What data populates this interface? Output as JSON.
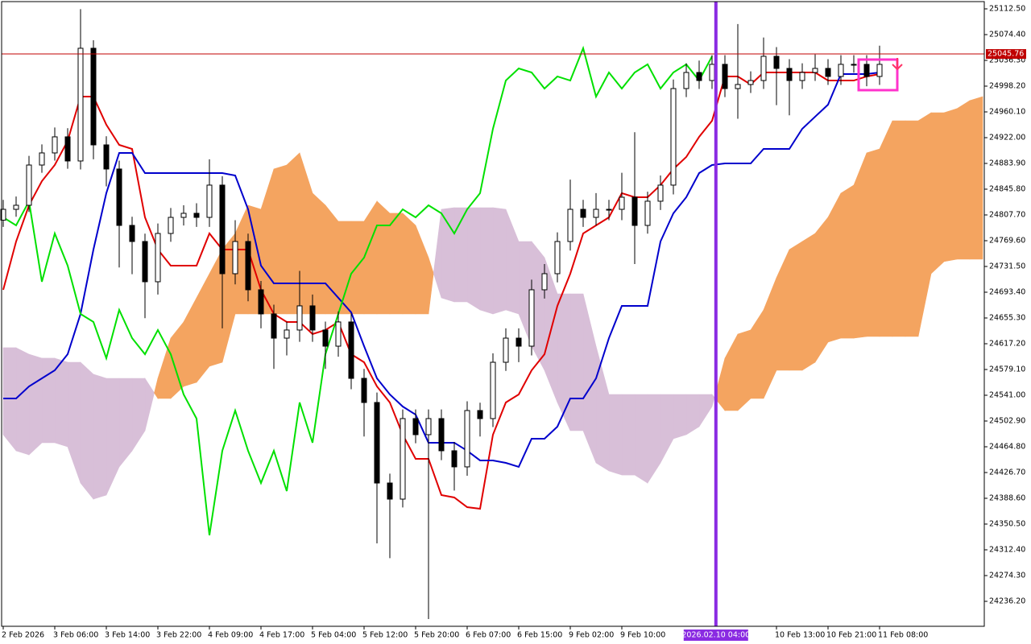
{
  "chart_data": {
    "type": "candlestick",
    "x": [
      0,
      2,
      4,
      6,
      8,
      10,
      12,
      14,
      16,
      18,
      20,
      22,
      24,
      26,
      28,
      30,
      32,
      34,
      36,
      38,
      40,
      42,
      44,
      46,
      48,
      50,
      52,
      54,
      56,
      58,
      60,
      62,
      64,
      66,
      68,
      70,
      72,
      74,
      76,
      78,
      80,
      82,
      84,
      86,
      88,
      90,
      92,
      94,
      96,
      98,
      100,
      102,
      104,
      106,
      108,
      110,
      112,
      114,
      116,
      118,
      120,
      122,
      124,
      126,
      128,
      130,
      132,
      134,
      136,
      138,
      140,
      142,
      144,
      146,
      148,
      150,
      152
    ],
    "open": [
      24800.0,
      24816.0,
      24822.0,
      24881.5,
      24899.4,
      24923.2,
      24887.5,
      25054.2,
      24911.3,
      24875.6,
      24792.2,
      24768.4,
      24708.9,
      24780.3,
      24804.1,
      24810.1,
      24804.1,
      24851.8,
      24720.8,
      24768.4,
      24697.0,
      24661.3,
      24625.5,
      24637.5,
      24673.2,
      24637.5,
      24613.6,
      24649.4,
      24566.0,
      24530.3,
      24411.2,
      24387.4,
      24506.5,
      24482.7,
      24506.5,
      24458.9,
      24435.1,
      24518.4,
      24506.5,
      24589.8,
      24625.5,
      24613.6,
      24697.0,
      24720.8,
      24768.4,
      24816.0,
      24804.1,
      24816.0,
      24816.0,
      24833.9,
      24792.2,
      24828.0,
      24851.8,
      24994.6,
      25018.4,
      25006.5,
      25030.4,
      24994.6,
      25000.6,
      25006.5,
      25042.3,
      25024.4,
      25006.5,
      25018.4,
      25024.4,
      25012.5,
      25030.4,
      25030.4,
      25012.5,
      null,
      null,
      null,
      null,
      null,
      null,
      null,
      null
    ],
    "high": [
      24830,
      24835,
      24895,
      24912,
      24937,
      24936,
      25112,
      25066,
      24924,
      24888,
      24805,
      24780,
      24795,
      24818,
      24822,
      24825,
      24890,
      24865,
      24800,
      24780,
      24710,
      24675,
      24650,
      24725,
      24690,
      24650,
      24665,
      24662,
      24580,
      24545,
      24425,
      24520,
      24520,
      24520,
      24520,
      24472,
      24532,
      24530,
      24603,
      24640,
      24640,
      24712,
      24735,
      24782,
      24860,
      24830,
      24840,
      24830,
      24870,
      24930,
      24842,
      24866,
      25008,
      25032,
      25036,
      25044,
      25044,
      25090,
      25020,
      25070,
      25056,
      25038,
      25032,
      25045,
      25038,
      25044,
      25044,
      25044,
      25058,
      null,
      null,
      null,
      null,
      null,
      null,
      null,
      null
    ],
    "low": [
      24790,
      24805,
      24812,
      24870,
      24888,
      24876,
      24875,
      24890,
      24850,
      24730,
      24720,
      24655,
      24690,
      24768,
      24792,
      24790,
      24790,
      24640,
      24705,
      24680,
      24640,
      24580,
      24600,
      24620,
      24620,
      24580,
      24598,
      24550,
      24480,
      24322,
      24300,
      24375,
      24470,
      24210,
      24445,
      24400,
      24422,
      24480,
      24494,
      24577,
      24590,
      24600,
      24684,
      24708,
      24755,
      24790,
      24792,
      24800,
      24800,
      24735,
      24780,
      24815,
      24838,
      24982,
      24994,
      24994,
      24982,
      24950,
      24988,
      24994,
      24970,
      24955,
      24994,
      25006,
      25000,
      25000,
      25018,
      24998,
      25000,
      null,
      null,
      null,
      null,
      null,
      null,
      null,
      null
    ],
    "close": [
      24816.0,
      24822.0,
      24881.5,
      24899.4,
      24923.2,
      24887.5,
      25054.2,
      24911.3,
      24875.6,
      24792.2,
      24768.4,
      24708.9,
      24780.3,
      24804.1,
      24810.1,
      24804.1,
      24851.8,
      24720.8,
      24768.4,
      24697.0,
      24661.3,
      24625.5,
      24637.5,
      24673.2,
      24637.5,
      24613.6,
      24649.4,
      24566.0,
      24530.3,
      24411.2,
      24387.4,
      24506.5,
      24482.7,
      24506.5,
      24458.9,
      24435.1,
      24518.4,
      24506.5,
      24589.8,
      24625.5,
      24613.6,
      24697.0,
      24720.8,
      24768.4,
      24816.0,
      24804.1,
      24816.0,
      24816.0,
      24833.9,
      24792.2,
      24828.0,
      24851.8,
      24994.6,
      25018.4,
      25006.5,
      25030.4,
      24994.6,
      25000.6,
      25006.5,
      25042.3,
      25024.4,
      25006.5,
      25018.4,
      25024.4,
      25012.5,
      25030.4,
      25030.4,
      25012.5,
      25030.4,
      null,
      null,
      null,
      null,
      null,
      null,
      null,
      null
    ],
    "up_color": "#ffffff",
    "down_color": "#000000",
    "lines": [
      {
        "color": "#e00000",
        "values": [
          24697.0,
          24768.4,
          24822.0,
          24857.7,
          24881.5,
          24917.2,
          24982.7,
          24982.7,
          24941.1,
          24911.3,
          24905.3,
          24804.1,
          24756.5,
          24732.7,
          24732.7,
          24732.7,
          24780.3,
          24756.5,
          24756.5,
          24756.5,
          24697.0,
          24661.3,
          24649.4,
          24649.4,
          24631.5,
          24637.5,
          24649.4,
          24601.7,
          24589.8,
          24554.1,
          24530.3,
          24482.7,
          24447.0,
          24447.0,
          24393.4,
          24389.8,
          24375.5,
          24373.1,
          24482.7,
          24530.3,
          24542.2,
          24577.9,
          24601.7,
          24673.2,
          24720.8,
          24780.3,
          24792.2,
          24804.1,
          24839.9,
          24833.9,
          24833.9,
          24851.8,
          24875.6,
          24893.4,
          24923.2,
          24947.0,
          25012.5,
          25012.5,
          25000.6,
          25018.4,
          25018.4,
          25018.4,
          25018.4,
          25018.4,
          25006.5,
          25006.5,
          25006.5,
          25012.5,
          25016.1,
          null,
          null,
          null,
          null,
          null,
          null,
          null,
          null
        ]
      },
      {
        "color": "#0000cc",
        "values": [
          24536.3,
          24536.3,
          24554.1,
          24566.0,
          24577.9,
          24601.7,
          24661.3,
          24756.5,
          24839.9,
          24899.4,
          24899.4,
          24869.6,
          24869.6,
          24869.6,
          24869.6,
          24869.6,
          24869.6,
          24869.6,
          24866.0,
          24816.0,
          24732.7,
          24706.5,
          24706.5,
          24706.5,
          24706.5,
          24706.5,
          24685.1,
          24663.6,
          24613.6,
          24566.0,
          24542.2,
          24524.3,
          24512.4,
          24470.8,
          24470.8,
          24470.8,
          24458.9,
          24444.6,
          24444.6,
          24441.0,
          24435.1,
          24476.7,
          24476.7,
          24494.6,
          24536.3,
          24536.3,
          24566.0,
          24625.5,
          24673.2,
          24673.2,
          24673.2,
          24768.4,
          24810.1,
          24833.9,
          24869.6,
          24881.5,
          24883.9,
          24883.9,
          24883.9,
          24905.3,
          24905.3,
          24905.3,
          24935.1,
          24953.0,
          24970.8,
          25016.1,
          25016.1,
          25016.1,
          25018.4,
          null,
          null,
          null,
          null,
          null,
          null,
          null,
          null
        ]
      },
      {
        "color": "#00e000",
        "values": [
          24804.1,
          24792.2,
          24827.9,
          24708.9,
          24780.3,
          24732.7,
          24661.3,
          24649.4,
          24595.8,
          24667.2,
          24625.5,
          24601.7,
          24637.5,
          24601.7,
          24542.2,
          24506.5,
          24333.9,
          24458.9,
          24518.4,
          24458.9,
          24411.2,
          24458.9,
          24399.3,
          24530.3,
          24470.8,
          24601.7,
          24661.3,
          24720.8,
          24744.6,
          24792.2,
          24792.2,
          24816.0,
          24804.1,
          24822.0,
          24810.1,
          24780.3,
          24816.0,
          24839.9,
          24935.1,
          25006.5,
          25024.4,
          25018.4,
          24994.6,
          25012.5,
          25006.5,
          25054.2,
          24982.7,
          25018.4,
          24994.6,
          25018.4,
          25030.4,
          24994.6,
          25018.4,
          25030.4,
          25006.5,
          25042.3,
          null,
          null,
          null,
          null,
          null,
          null,
          null,
          null,
          null,
          null,
          null,
          null,
          null,
          null,
          null,
          null,
          null,
          null,
          null,
          null,
          null
        ]
      }
    ],
    "cloud": {
      "up_color": "#f4a460",
      "down_color": "#d8bfd8",
      "span_a": [
        24482.7,
        24458.9,
        24452.9,
        24470.8,
        24470.8,
        24464.8,
        24411.2,
        24387.4,
        24393.4,
        24435.1,
        24458.9,
        24488.6,
        24566.0,
        24625.5,
        24649.4,
        24685.1,
        24720.8,
        24756.5,
        24780.3,
        24822.0,
        24816.0,
        24875.6,
        24881.5,
        24899.4,
        24839.9,
        24822.0,
        24798.2,
        24798.2,
        24798.2,
        24827.9,
        24810.1,
        24810.1,
        24792.2,
        24744.6,
        24685.1,
        24679.1,
        24679.1,
        24667.2,
        24661.3,
        24667.2,
        24661.3,
        24613.6,
        24577.9,
        24530.3,
        24488.6,
        24488.6,
        24441.0,
        24429.1,
        24423.1,
        24423.1,
        24411.2,
        24441.0,
        24476.7,
        24482.7,
        24494.6,
        24524.3,
        24595.8,
        24631.5,
        24637.5,
        24667.2,
        24714.8,
        24756.5,
        24768.4,
        24780.3,
        24804.1,
        24839.9,
        24851.8,
        24899.4,
        24905.3,
        24947.0,
        24947.0,
        24947.0,
        24958.9,
        24958.9,
        24964.9,
        24976.8,
        24982.7
      ],
      "span_b": [
        24611.3,
        24611.3,
        24601.7,
        24595.8,
        24595.8,
        24589.8,
        24589.8,
        24572.0,
        24566.0,
        24566.0,
        24566.0,
        24566.0,
        24536.3,
        24536.3,
        24554.1,
        24560.1,
        24583.9,
        24589.8,
        24661.3,
        24661.3,
        24661.3,
        24661.3,
        24661.3,
        24661.3,
        24661.3,
        24661.3,
        24661.3,
        24661.3,
        24661.3,
        24661.3,
        24661.3,
        24661.3,
        24661.3,
        24661.3,
        24816.0,
        24818.4,
        24818.4,
        24818.4,
        24818.4,
        24816.0,
        24768.4,
        24768.4,
        24744.6,
        24691.0,
        24691.0,
        24691.0,
        24613.6,
        24542.2,
        24542.2,
        24542.2,
        24542.2,
        24542.2,
        24542.2,
        24542.2,
        24542.2,
        24542.2,
        24518.4,
        24518.4,
        24536.3,
        24536.3,
        24577.9,
        24577.9,
        24577.9,
        24589.8,
        24619.6,
        24625.5,
        24625.5,
        24627.9,
        24627.9,
        24627.9,
        24627.9,
        24627.9,
        24720.8,
        24738.7,
        24742.2,
        24742.2,
        24742.2
      ]
    },
    "price_line": {
      "value": 25045.76,
      "color": "#c00000"
    },
    "cursor": {
      "x": 110.6,
      "label": "2026.02.10 04:00",
      "color": "#8a2be2"
    },
    "xlim": [
      -0.25,
      152.25
    ],
    "ylim": [
      24199.3,
      25123.2
    ],
    "xticks": [
      {
        "value": 0,
        "label": "2 Feb 2026"
      },
      {
        "value": 8,
        "label": "3 Feb 06:00"
      },
      {
        "value": 16,
        "label": "3 Feb 14:00"
      },
      {
        "value": 24,
        "label": "3 Feb 22:00"
      },
      {
        "value": 32,
        "label": "4 Feb 09:00"
      },
      {
        "value": 40,
        "label": "4 Feb 17:00"
      },
      {
        "value": 48,
        "label": "5 Feb 04:00"
      },
      {
        "value": 56,
        "label": "5 Feb 12:00"
      },
      {
        "value": 64,
        "label": "5 Feb 20:00"
      },
      {
        "value": 72,
        "label": "6 Feb 07:00"
      },
      {
        "value": 80,
        "label": "6 Feb 15:00"
      },
      {
        "value": 88,
        "label": "9 Feb 02:00"
      },
      {
        "value": 96,
        "label": "9 Feb 10:00"
      },
      {
        "value": 120,
        "label": "10 Feb 13:00"
      },
      {
        "value": 128,
        "label": "10 Feb 21:00"
      },
      {
        "value": 136,
        "label": "11 Feb 08:00"
      }
    ],
    "yticks": [
      {
        "value": 25112.5,
        "label": "25112.50"
      },
      {
        "value": 25074.4,
        "label": "25074.40"
      },
      {
        "value": 25036.3,
        "label": "25036.30"
      },
      {
        "value": 24998.2,
        "label": "24998.20"
      },
      {
        "value": 24960.1,
        "label": "24960.10"
      },
      {
        "value": 24922,
        "label": "24922.00"
      },
      {
        "value": 24883.9,
        "label": "24883.90"
      },
      {
        "value": 24845.8,
        "label": "24845.80"
      },
      {
        "value": 24807.7,
        "label": "24807.70"
      },
      {
        "value": 24769.6,
        "label": "24769.60"
      },
      {
        "value": 24731.5,
        "label": "24731.50"
      },
      {
        "value": 24693.4,
        "label": "24693.40"
      },
      {
        "value": 24655.3,
        "label": "24655.30"
      },
      {
        "value": 24617.2,
        "label": "24617.20"
      },
      {
        "value": 24579.1,
        "label": "24579.10"
      },
      {
        "value": 24541,
        "label": "24541.00"
      },
      {
        "value": 24502.9,
        "label": "24502.90"
      },
      {
        "value": 24464.8,
        "label": "24464.80"
      },
      {
        "value": 24426.7,
        "label": "24426.70"
      },
      {
        "value": 24388.6,
        "label": "24388.60"
      },
      {
        "value": 24350.5,
        "label": "24350.50"
      },
      {
        "value": 24312.4,
        "label": "24312.40"
      },
      {
        "value": 24274.3,
        "label": "24274.30"
      },
      {
        "value": 24236.2,
        "label": "24236.20"
      }
    ]
  }
}
